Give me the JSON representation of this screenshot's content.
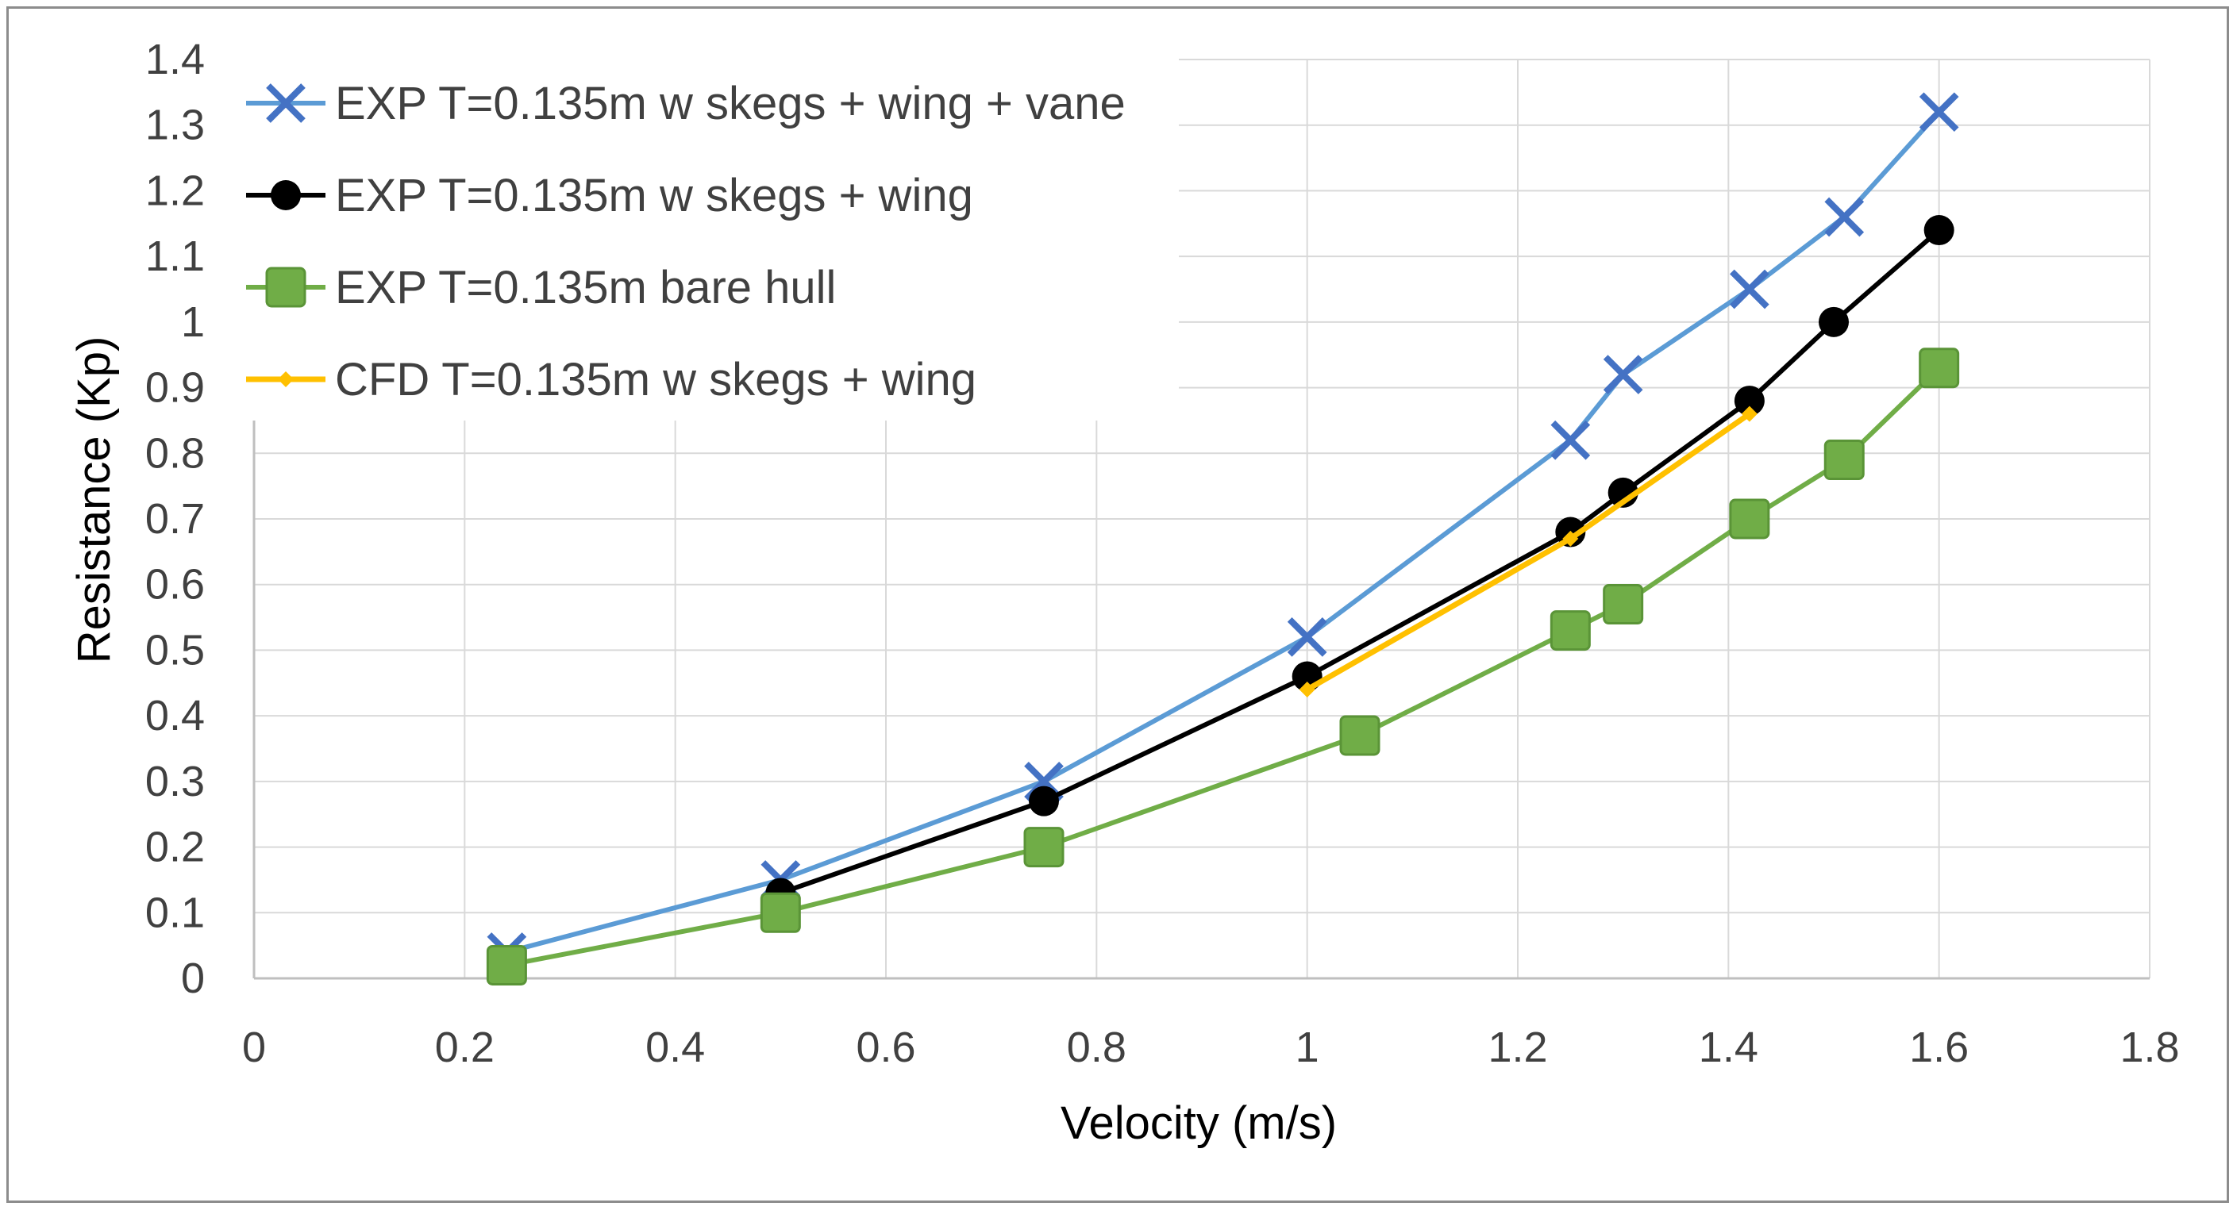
{
  "chart_data": {
    "type": "line",
    "title": "",
    "xlabel": "Velocity (m/s)",
    "ylabel": "Resistance (Kp)",
    "xlim": [
      0,
      1.8
    ],
    "ylim": [
      0,
      1.4
    ],
    "xticks": [
      "0",
      "0.2",
      "0.4",
      "0.6",
      "0.8",
      "1",
      "1.2",
      "1.4",
      "1.6",
      "1.8"
    ],
    "yticks": [
      "0",
      "0.1",
      "0.2",
      "0.3",
      "0.4",
      "0.5",
      "0.6",
      "0.7",
      "0.8",
      "0.9",
      "1",
      "1.1",
      "1.2",
      "1.3",
      "1.4"
    ],
    "grid": true,
    "legend_position": "top-left",
    "series": [
      {
        "name": "EXP T=0.135m w skegs + wing + vane",
        "color": "#5b9bd5",
        "marker": "x",
        "marker_color": "#4472c4",
        "x": [
          0.24,
          0.5,
          0.75,
          1.0,
          1.25,
          1.3,
          1.42,
          1.51,
          1.6
        ],
        "y": [
          0.04,
          0.15,
          0.3,
          0.52,
          0.82,
          0.92,
          1.05,
          1.16,
          1.32
        ]
      },
      {
        "name": "EXP T=0.135m w skegs + wing",
        "color": "#000000",
        "marker": "circle",
        "marker_color": "#000000",
        "x": [
          0.5,
          0.75,
          1.0,
          1.25,
          1.3,
          1.42,
          1.5,
          1.6
        ],
        "y": [
          0.13,
          0.27,
          0.46,
          0.68,
          0.74,
          0.88,
          1.0,
          1.14
        ]
      },
      {
        "name": "EXP T=0.135m bare hull",
        "color": "#70ad47",
        "marker": "square",
        "marker_color": "#70ad47",
        "x": [
          0.24,
          0.5,
          0.75,
          1.05,
          1.25,
          1.3,
          1.42,
          1.51,
          1.6
        ],
        "y": [
          0.02,
          0.1,
          0.2,
          0.37,
          0.53,
          0.57,
          0.7,
          0.79,
          0.93
        ]
      },
      {
        "name": "CFD T=0.135m w skegs + wing",
        "color": "#ffc000",
        "marker": "diamond",
        "marker_color": "#ffc000",
        "x": [
          1.0,
          1.25,
          1.42
        ],
        "y": [
          0.44,
          0.67,
          0.86
        ]
      }
    ]
  }
}
